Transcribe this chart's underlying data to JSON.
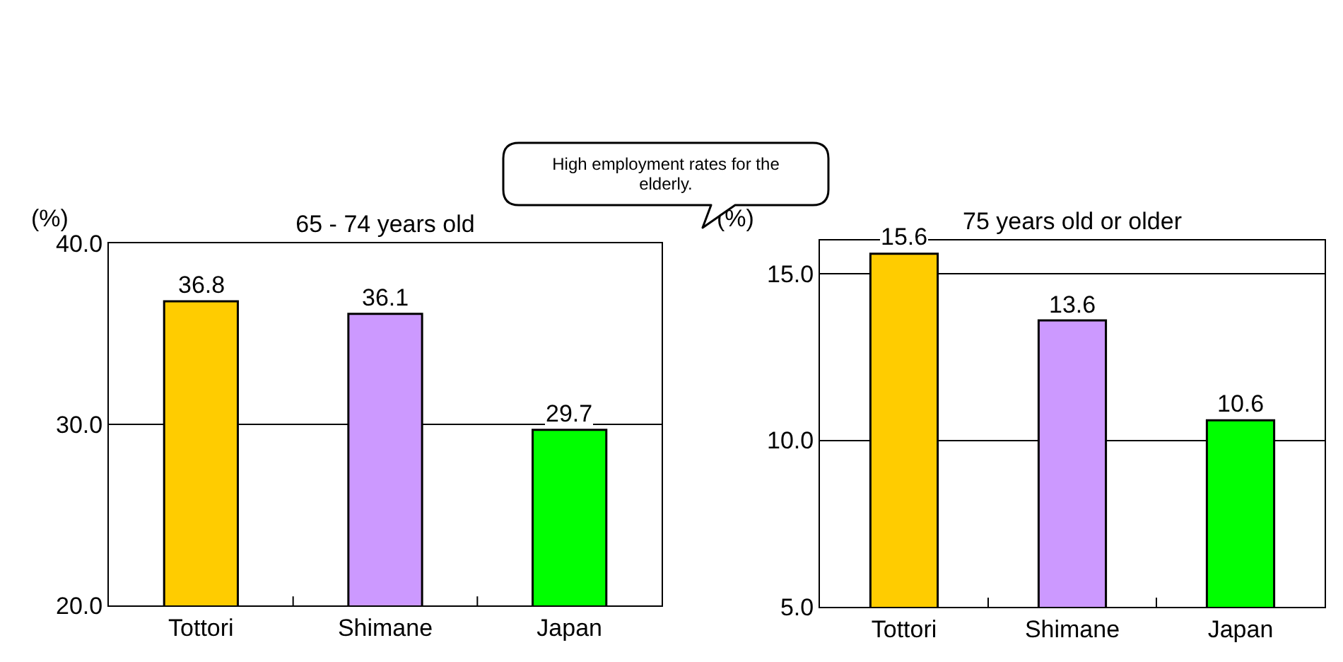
{
  "chart_data": [
    {
      "type": "bar",
      "title": "65 - 74 years old",
      "ylabel": "(%)",
      "categories": [
        "Tottori",
        "Shimane",
        "Japan"
      ],
      "values": [
        36.8,
        36.1,
        29.7
      ],
      "colors": [
        "#ffcc00",
        "#cc99ff",
        "#00ff00"
      ],
      "ylim": [
        20,
        40
      ],
      "yticks": [
        {
          "value": 20,
          "label": "20.0"
        },
        {
          "value": 30,
          "label": "30.0"
        },
        {
          "value": 40,
          "label": "40.0"
        }
      ],
      "grid": "y",
      "data_labels": true,
      "annotations": [
        "High employment rates for the elderly."
      ]
    },
    {
      "type": "bar",
      "title": "75 years old or older",
      "ylabel": "(%)",
      "categories": [
        "Tottori",
        "Shimane",
        "Japan"
      ],
      "values": [
        15.6,
        13.6,
        10.6
      ],
      "colors": [
        "#ffcc00",
        "#cc99ff",
        "#00ff00"
      ],
      "ylim": [
        5,
        16
      ],
      "yticks": [
        {
          "value": 5,
          "label": "5.0"
        },
        {
          "value": 10,
          "label": "10.0"
        },
        {
          "value": 15,
          "label": "15.0"
        }
      ],
      "grid": "y",
      "data_labels": true
    }
  ]
}
